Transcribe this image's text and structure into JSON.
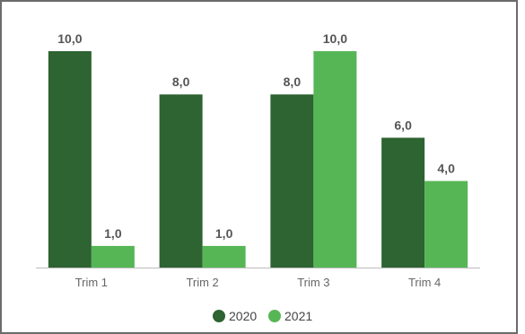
{
  "chart_data": {
    "type": "bar",
    "categories": [
      "Trim 1",
      "Trim 2",
      "Trim 3",
      "Trim 4"
    ],
    "series": [
      {
        "name": "2020",
        "values": [
          10.0,
          8.0,
          8.0,
          6.0
        ],
        "labels": [
          "10,0",
          "8,0",
          "8,0",
          "6,0"
        ],
        "color": "#2e6332"
      },
      {
        "name": "2021",
        "values": [
          1.0,
          1.0,
          10.0,
          4.0
        ],
        "labels": [
          "1,0",
          "1,0",
          "10,0",
          "4,0"
        ],
        "color": "#56b656"
      }
    ],
    "title": "",
    "xlabel": "",
    "ylabel": "",
    "ylim": [
      0,
      10
    ],
    "grid": false,
    "legend": "bottom-center"
  }
}
